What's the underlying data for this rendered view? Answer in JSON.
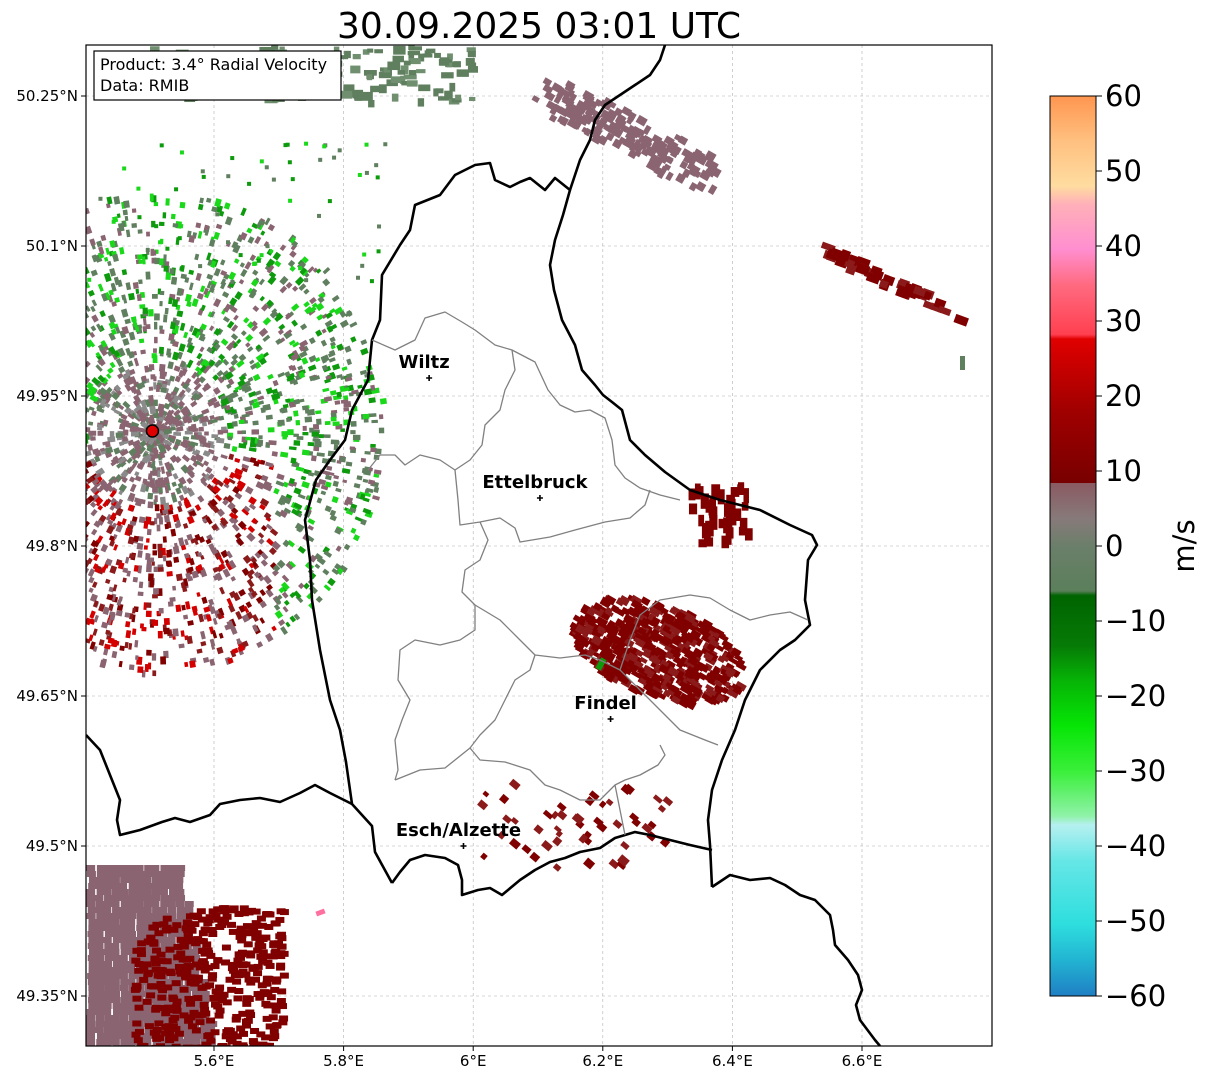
{
  "title": "30.09.2025 03:01 UTC",
  "info_box": {
    "product": "Product: 3.4° Radial Velocity",
    "data": "Data: RMIB"
  },
  "map": {
    "lon_range": [
      5.4,
      6.8
    ],
    "lat_range": [
      49.3,
      50.3
    ],
    "lon_ticks": [
      {
        "value": 5.6,
        "label": "5.6°E"
      },
      {
        "value": 5.8,
        "label": "5.8°E"
      },
      {
        "value": 6.0,
        "label": "6°E"
      },
      {
        "value": 6.2,
        "label": "6.2°E"
      },
      {
        "value": 6.4,
        "label": "6.4°E"
      },
      {
        "value": 6.6,
        "label": "6.6°E"
      }
    ],
    "lat_ticks": [
      {
        "value": 50.25,
        "label": "50.25°N"
      },
      {
        "value": 50.1,
        "label": "50.1°N"
      },
      {
        "value": 49.95,
        "label": "49.95°N"
      },
      {
        "value": 49.8,
        "label": "49.8°N"
      },
      {
        "value": 49.65,
        "label": "49.65°N"
      },
      {
        "value": 49.5,
        "label": "49.5°N"
      },
      {
        "value": 49.35,
        "label": "49.35°N"
      }
    ],
    "grid": true
  },
  "cities": [
    {
      "name": "Wiltz",
      "lon": 5.932,
      "lat": 49.968
    },
    {
      "name": "Ettelbruck",
      "lon": 6.103,
      "lat": 49.848
    },
    {
      "name": "Findel",
      "lon": 6.212,
      "lat": 49.627
    },
    {
      "name": "Esch/Alzette",
      "lon": 5.985,
      "lat": 49.5
    }
  ],
  "radar_site": {
    "lon": 5.505,
    "lat": 49.915
  },
  "colorbar": {
    "label": "m/s",
    "min": -60,
    "max": 60,
    "ticks": [
      60,
      50,
      40,
      30,
      20,
      10,
      0,
      -10,
      -20,
      -30,
      -40,
      -50,
      -60
    ],
    "tick_labels": [
      "60",
      "50",
      "40",
      "30",
      "20",
      "10",
      "0",
      "−10",
      "−20",
      "−30",
      "−40",
      "−50",
      "−60"
    ],
    "colors": {
      "far_negative": "#1f7fc4",
      "cyan": "#2edede",
      "light_cyan": "#b6f0f0",
      "light_green": "#8ff2a8",
      "bright_green": "#06e506",
      "dark_green": "#006400",
      "grey_green": "#5b7f5b",
      "grey": "#877a7a",
      "brownish": "#8e4a55",
      "dark_red": "#780000",
      "red": "#ff0000",
      "pink": "#ff8fd0",
      "peach": "#ffdca0",
      "orange": "#ff9650"
    }
  },
  "echo_colors": {
    "dark_red": "#800000",
    "maroon": "#8b1a1a",
    "mauve": "#8a6470",
    "grey_green": "#5f7f5f",
    "green": "#0d9a0d",
    "bright_green": "#1ad81a",
    "red": "#d40000"
  }
}
